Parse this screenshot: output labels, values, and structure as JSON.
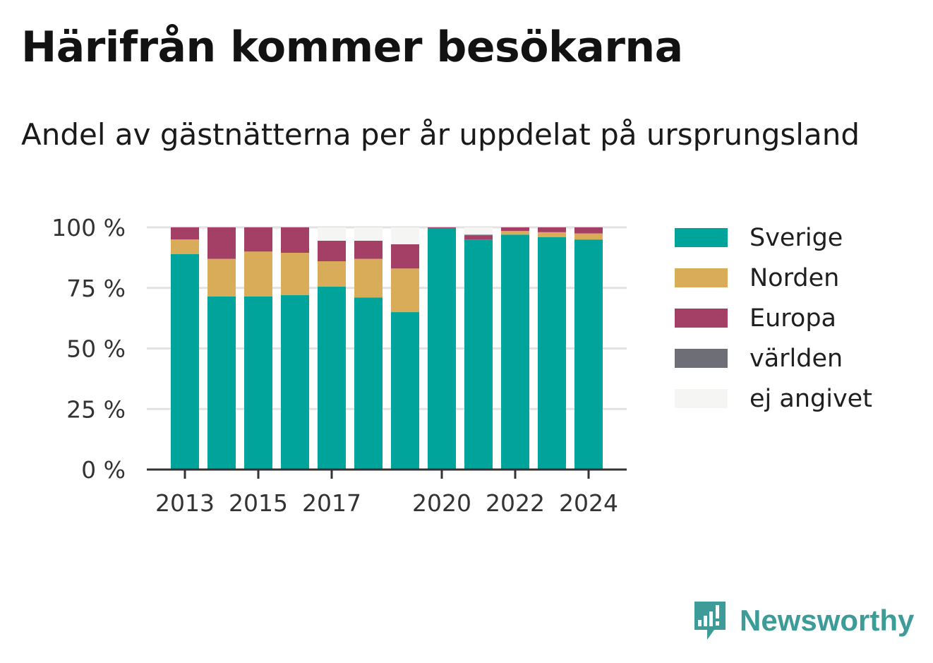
{
  "title": "Härifrån kommer besökarna",
  "subtitle": "Andel av gästnätterna per år uppdelat på ursprungsland",
  "brand": {
    "name": "Newsworthy",
    "icon": "newsworthy-logo-icon",
    "color": "#3d9c98"
  },
  "chart_data": {
    "type": "bar",
    "stacked": true,
    "categories": [
      "2013",
      "2014",
      "2015",
      "2016",
      "2017",
      "2018",
      "2019",
      "2020",
      "2021",
      "2022",
      "2023",
      "2024"
    ],
    "x_tick_labels": [
      "2013",
      "2015",
      "2017",
      "2020",
      "2022",
      "2024"
    ],
    "y_tick_labels": [
      "0 %",
      "25 %",
      "50 %",
      "75 %",
      "100 %"
    ],
    "ylim": [
      0,
      100
    ],
    "grid": true,
    "legend_position": "right",
    "series": [
      {
        "name": "Sverige",
        "color": "#00a49a",
        "values": [
          89,
          71.5,
          71.5,
          72,
          75.5,
          71,
          65,
          99.5,
          95,
          97,
          96,
          95
        ]
      },
      {
        "name": "Norden",
        "color": "#d9ac5a",
        "values": [
          6,
          15.5,
          18.5,
          17.5,
          10.5,
          16,
          18,
          0,
          0,
          1.5,
          2,
          2.5
        ]
      },
      {
        "name": "Europa",
        "color": "#a43f66",
        "values": [
          5,
          13,
          10,
          10.5,
          8.5,
          7.5,
          10,
          0.5,
          1.5,
          1.5,
          2,
          2.5
        ]
      },
      {
        "name": "världen",
        "color": "#6e6e76",
        "values": [
          0,
          0,
          0,
          0,
          0,
          0,
          0,
          0,
          0.5,
          0,
          0,
          0
        ]
      },
      {
        "name": "ej angivet",
        "color": "#f5f5f4",
        "values": [
          0,
          0,
          0,
          0,
          5.5,
          5.5,
          7,
          0,
          3,
          0,
          0,
          0
        ]
      }
    ]
  }
}
